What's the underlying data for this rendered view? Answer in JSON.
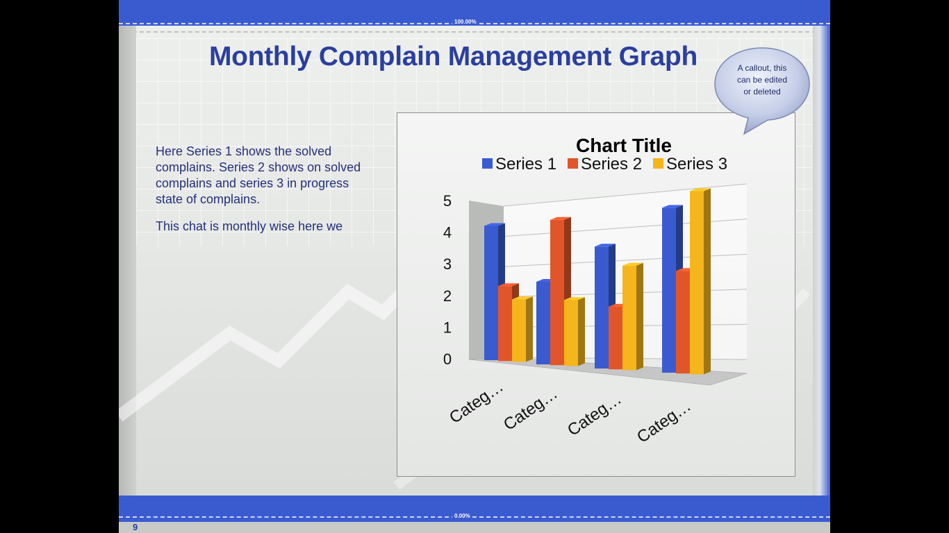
{
  "slide": {
    "title": "Monthly Complain Management Graph",
    "page_number": "9",
    "top_band_label": "100.00%",
    "bottom_band_label": "0.00%",
    "body_paragraphs": [
      "Here Series 1 shows the solved complains. Series 2 shows on solved complains and series 3 in progress state of complains.",
      "This chat is monthly wise here we"
    ],
    "callout": "A callout, this can be edited or deleted"
  },
  "colors": {
    "band": "#3a5bd0",
    "title": "#2a3f9e",
    "series1": "#3a5bd0",
    "series2": "#e0562a",
    "series3": "#f5b51c"
  },
  "chart_data": {
    "type": "bar",
    "title": "Chart Title",
    "categories": [
      "Categ…",
      "Categ…",
      "Categ…",
      "Categ…"
    ],
    "series": [
      {
        "name": "Series 1",
        "values": [
          4.3,
          2.5,
          3.5,
          4.5
        ]
      },
      {
        "name": "Series 2",
        "values": [
          2.4,
          4.4,
          1.8,
          2.8
        ]
      },
      {
        "name": "Series 3",
        "values": [
          2,
          2,
          3,
          5
        ]
      }
    ],
    "yticks": [
      "0",
      "1",
      "2",
      "3",
      "4",
      "5"
    ],
    "ylim": [
      0,
      5
    ],
    "grid": true,
    "legend": "top"
  }
}
